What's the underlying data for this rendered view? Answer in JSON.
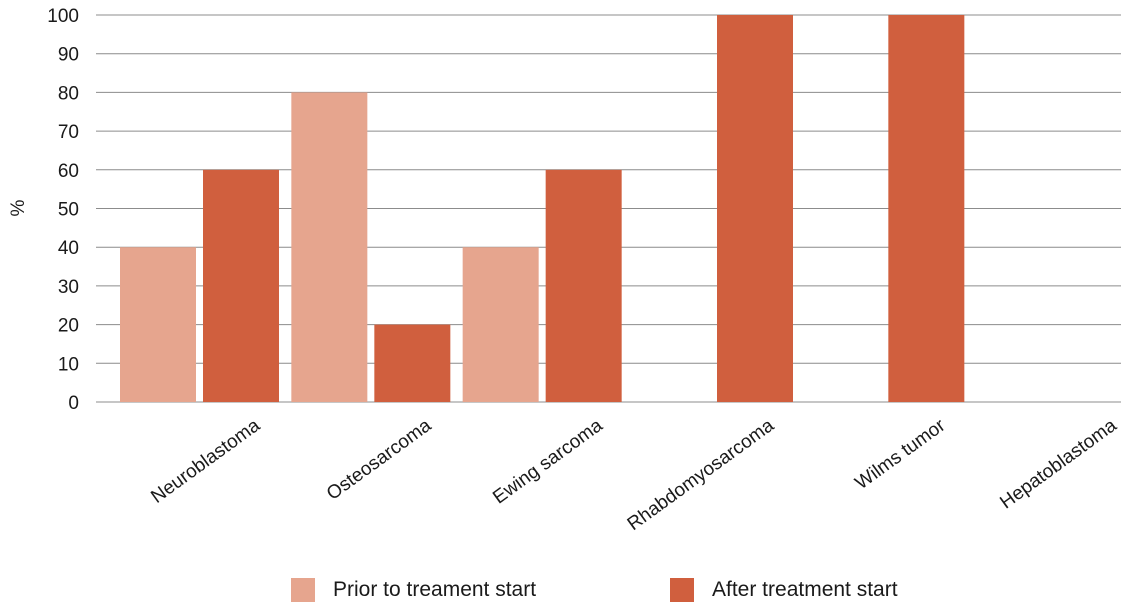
{
  "chart_data": {
    "type": "bar",
    "title": "",
    "xlabel": "",
    "ylabel": "%",
    "ylim": [
      0,
      100
    ],
    "yticks": [
      0,
      10,
      20,
      30,
      40,
      50,
      60,
      70,
      80,
      90,
      100
    ],
    "grid": true,
    "legend_position": "bottom",
    "categories": [
      "Neuroblastoma",
      "Osteosarcoma",
      "Ewing sarcoma",
      "Rhabdomyosarcoma",
      "Wilms tumor",
      "Hepatoblastoma"
    ],
    "series": [
      {
        "name": "Prior to treament start",
        "color": "#e6a58e",
        "values": [
          40,
          80,
          40,
          0,
          0,
          0
        ]
      },
      {
        "name": "After treatment start",
        "color": "#d05f3e",
        "values": [
          60,
          20,
          60,
          100,
          100,
          0
        ]
      }
    ]
  }
}
